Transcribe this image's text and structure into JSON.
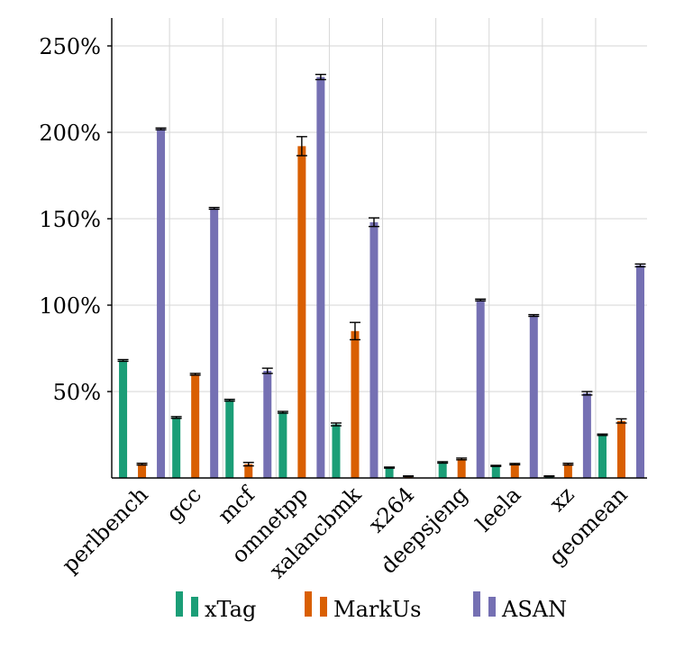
{
  "chart_data": {
    "type": "bar",
    "title": "",
    "xlabel": "",
    "ylabel": "",
    "categories": [
      "perlbench",
      "gcc",
      "mcf",
      "omnetpp",
      "xalancbmk",
      "x264",
      "deepsjeng",
      "leela",
      "xz",
      "geomean"
    ],
    "series": [
      {
        "name": "xTag",
        "color": "#1b9e77",
        "values": [
          68,
          35,
          45,
          38,
          31,
          6,
          9,
          7,
          1,
          25
        ],
        "errors": [
          0.5,
          0.5,
          0.5,
          0.5,
          0.8,
          0.3,
          0.4,
          0.3,
          0.2,
          0.4
        ]
      },
      {
        "name": "MarkUs",
        "color": "#d95f02",
        "values": [
          8,
          60,
          8,
          192,
          85,
          1,
          11,
          8,
          8,
          33
        ],
        "errors": [
          0.5,
          0.5,
          1.0,
          5.5,
          5.0,
          0.2,
          0.5,
          0.4,
          0.5,
          1.2
        ]
      },
      {
        "name": "ASAN",
        "color": "#7570b3",
        "values": [
          202,
          156,
          62,
          232,
          148,
          0,
          103,
          94,
          49,
          123
        ],
        "errors": [
          0.5,
          0.5,
          1.5,
          1.5,
          2.5,
          0,
          0.5,
          0.5,
          1.0,
          0.8
        ]
      }
    ],
    "ylim": [
      0,
      250
    ],
    "yticks": [
      50,
      100,
      150,
      200,
      250
    ],
    "ytick_labels": [
      "50%",
      "100%",
      "150%",
      "200%",
      "250%"
    ],
    "grid": true,
    "legend_position": "bottom"
  }
}
